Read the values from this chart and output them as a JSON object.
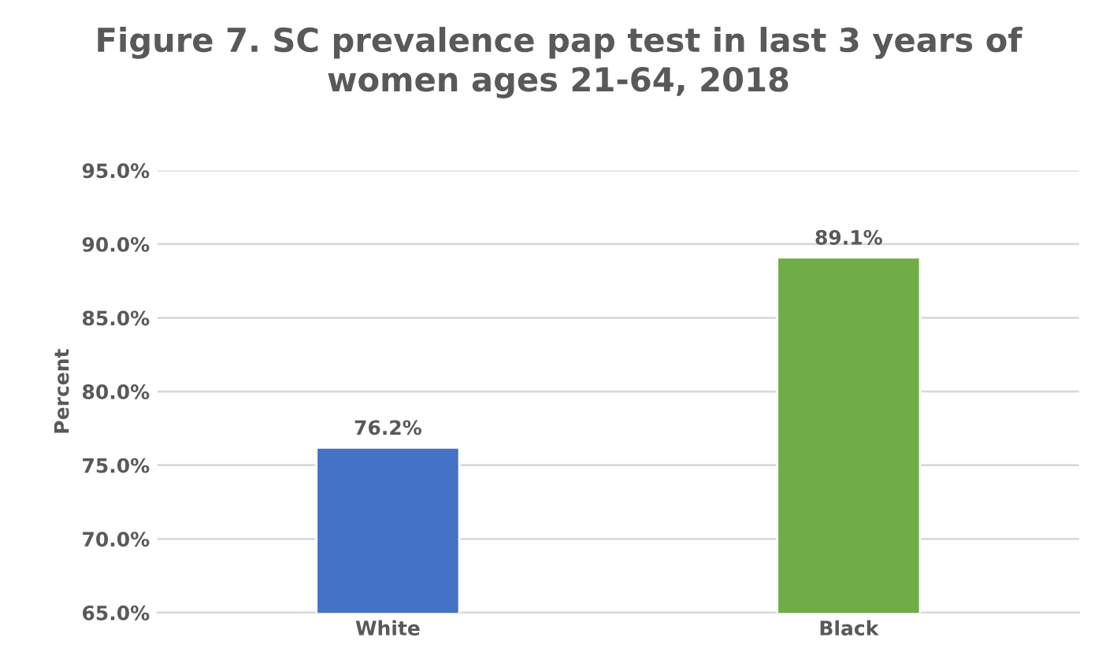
{
  "chart_data": {
    "type": "bar",
    "title": "Figure 7. SC prevalence pap test in last 3 years of\nwomen ages 21-64, 2018",
    "ylabel": "Percent",
    "categories": [
      "White",
      "Black"
    ],
    "values": [
      76.2,
      89.1
    ],
    "colors": [
      "#4472c4",
      "#70ad47"
    ],
    "value_labels": [
      "76.2%",
      "89.1%"
    ],
    "ylim": [
      65,
      95
    ],
    "yticks": [
      {
        "value": 65,
        "label": "65.0%"
      },
      {
        "value": 70,
        "label": "70.0%"
      },
      {
        "value": 75,
        "label": "75.0%"
      },
      {
        "value": 80,
        "label": "80.0%"
      },
      {
        "value": 85,
        "label": "85.0%"
      },
      {
        "value": 90,
        "label": "90.0%"
      },
      {
        "value": 95,
        "label": "95.0%"
      }
    ],
    "grid": "y",
    "legend": false
  }
}
